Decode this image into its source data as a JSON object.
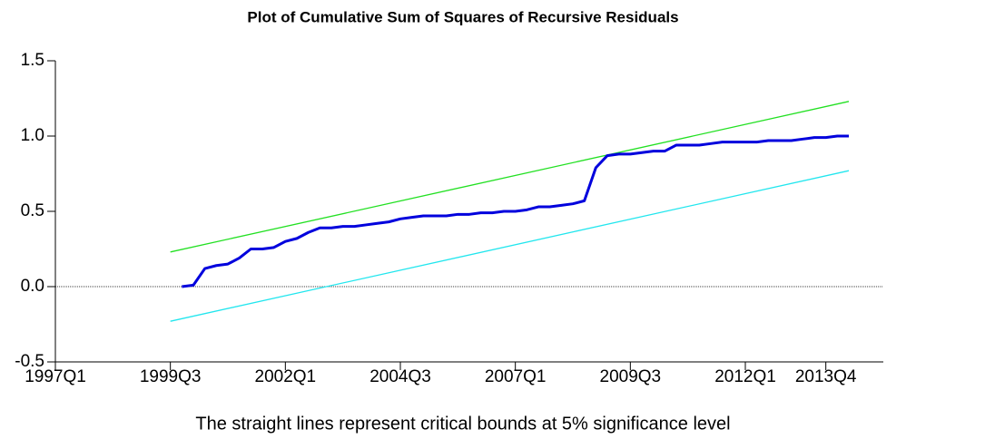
{
  "chart_data": {
    "type": "line",
    "title": "Plot of Cumulative Sum of Squares of Recursive Residuals",
    "note": "The straight lines represent critical bounds at 5% significance level",
    "xlim": [
      1997,
      2015
    ],
    "xticks": [
      {
        "value": 1997,
        "label": "1997Q1"
      },
      {
        "value": 1999.5,
        "label": "1999Q3"
      },
      {
        "value": 2002,
        "label": "2002Q1"
      },
      {
        "value": 2004.5,
        "label": "2004Q3"
      },
      {
        "value": 2007,
        "label": "2007Q1"
      },
      {
        "value": 2009.5,
        "label": "2009Q3"
      },
      {
        "value": 2012,
        "label": "2012Q1"
      },
      {
        "value": 2013.75,
        "label": "2013Q4"
      }
    ],
    "ylim": [
      -0.5,
      1.5
    ],
    "yticks": [
      -0.5,
      {
        "value": 0,
        "label": "0.0"
      },
      0.5,
      {
        "value": 1,
        "label": "1.0"
      },
      1.5
    ],
    "zero_line": true,
    "series": [
      {
        "color": "#0000dd",
        "width": 3,
        "x": [
          1999.75,
          2000,
          2000.25,
          2000.5,
          2000.75,
          2001,
          2001.25,
          2001.5,
          2001.75,
          2002,
          2002.25,
          2002.5,
          2002.75,
          2003,
          2003.25,
          2003.5,
          2003.75,
          2004,
          2004.25,
          2004.5,
          2004.75,
          2005,
          2005.25,
          2005.5,
          2005.75,
          2006,
          2006.25,
          2006.5,
          2006.75,
          2007,
          2007.25,
          2007.5,
          2007.75,
          2008,
          2008.25,
          2008.5,
          2008.75,
          2009,
          2009.25,
          2009.5,
          2009.75,
          2010,
          2010.25,
          2010.5,
          2010.75,
          2011,
          2011.25,
          2011.5,
          2011.75,
          2012,
          2012.25,
          2012.5,
          2012.75,
          2013,
          2013.25,
          2013.5,
          2013.75,
          2014,
          2014.25
        ],
        "values": [
          0.0,
          0.01,
          0.12,
          0.14,
          0.15,
          0.19,
          0.25,
          0.25,
          0.26,
          0.3,
          0.32,
          0.36,
          0.39,
          0.39,
          0.4,
          0.4,
          0.41,
          0.42,
          0.43,
          0.45,
          0.46,
          0.47,
          0.47,
          0.47,
          0.48,
          0.48,
          0.49,
          0.49,
          0.5,
          0.5,
          0.51,
          0.53,
          0.53,
          0.54,
          0.55,
          0.57,
          0.79,
          0.87,
          0.88,
          0.88,
          0.89,
          0.9,
          0.9,
          0.94,
          0.94,
          0.94,
          0.95,
          0.96,
          0.96,
          0.96,
          0.96,
          0.97,
          0.97,
          0.97,
          0.98,
          0.99,
          0.99,
          1.0,
          1.0
        ]
      },
      {
        "color": "#22e022",
        "width": 1.3,
        "x": [
          1999.5,
          2014.25
        ],
        "values": [
          0.23,
          1.23
        ]
      },
      {
        "color": "#22e6ee",
        "width": 1.3,
        "x": [
          1999.5,
          2014.25
        ],
        "values": [
          -0.23,
          0.77
        ]
      }
    ]
  }
}
